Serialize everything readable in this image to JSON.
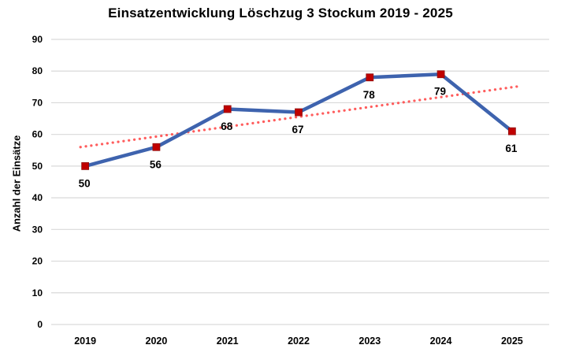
{
  "chart_data": {
    "type": "line",
    "title": "Einsatzentwicklung Löschzug 3 Stockum 2019 - 2025",
    "ylabel": "Anzahl der Einsätze",
    "xlabel": "",
    "categories": [
      "2019",
      "2020",
      "2021",
      "2022",
      "2023",
      "2024",
      "2025"
    ],
    "series": [
      {
        "name": "Einsätze",
        "values": [
          50,
          56,
          68,
          67,
          78,
          79,
          61
        ]
      }
    ],
    "data_labels": [
      "50",
      "56",
      "68",
      "67",
      "78",
      "79",
      "61"
    ],
    "trendline": {
      "type": "linear",
      "start_value": 56.0,
      "end_value": 75.1,
      "style": "dotted"
    },
    "ylim": [
      0,
      90
    ],
    "ytick_step": 10,
    "ytick_labels": [
      "0",
      "10",
      "20",
      "30",
      "40",
      "50",
      "60",
      "70",
      "80",
      "90"
    ],
    "grid": true,
    "legend": "none",
    "colors": {
      "line": "#3e63ae",
      "marker": "#c00000",
      "trendline": "#ff4c4c",
      "gridline": "#d9d9d9",
      "text": "#000000",
      "background": "#ffffff"
    }
  }
}
